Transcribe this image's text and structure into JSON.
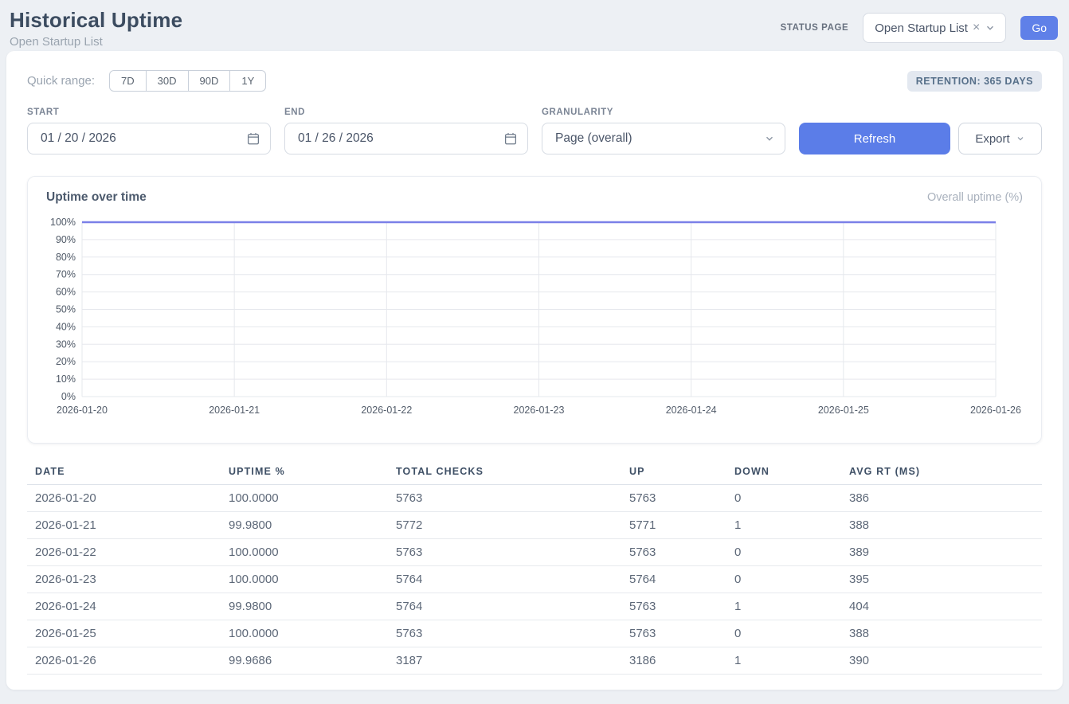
{
  "page": {
    "title": "Historical Uptime",
    "subtitle": "Open Startup List"
  },
  "status_page": {
    "label": "STATUS PAGE",
    "selected": "Open Startup List",
    "clear_icon": "×",
    "go_label": "Go"
  },
  "controls": {
    "quick_range_label": "Quick range:",
    "quick_ranges": [
      "7D",
      "30D",
      "90D",
      "1Y"
    ],
    "retention_badge": "RETENTION: 365 DAYS",
    "start": {
      "label": "START",
      "value": "01 / 20 / 2026"
    },
    "end": {
      "label": "END",
      "value": "01 / 26 / 2026"
    },
    "granularity": {
      "label": "GRANULARITY",
      "value": "Page (overall)"
    },
    "refresh_label": "Refresh",
    "export_label": "Export"
  },
  "chart": {
    "title": "Uptime over time",
    "legend": "Overall uptime (%)"
  },
  "chart_data": {
    "type": "line",
    "title": "Uptime over time",
    "x": [
      "2026-01-20",
      "2026-01-21",
      "2026-01-22",
      "2026-01-23",
      "2026-01-24",
      "2026-01-25",
      "2026-01-26"
    ],
    "series": [
      {
        "name": "Overall uptime (%)",
        "values": [
          100.0,
          99.98,
          100.0,
          100.0,
          99.98,
          100.0,
          99.9686
        ]
      }
    ],
    "ylim": [
      0,
      100
    ],
    "y_ticks": [
      "0%",
      "10%",
      "20%",
      "30%",
      "40%",
      "50%",
      "60%",
      "70%",
      "80%",
      "90%",
      "100%"
    ],
    "grid": true,
    "legend_position": "top-right",
    "line_color": "#7b80e8",
    "grid_color": "#e6e8ed",
    "axis_text_color": "#535d6b"
  },
  "table": {
    "columns": [
      "DATE",
      "UPTIME %",
      "TOTAL CHECKS",
      "UP",
      "DOWN",
      "AVG RT (MS)"
    ],
    "rows": [
      [
        "2026-01-20",
        "100.0000",
        "5763",
        "5763",
        "0",
        "386"
      ],
      [
        "2026-01-21",
        "99.9800",
        "5772",
        "5771",
        "1",
        "388"
      ],
      [
        "2026-01-22",
        "100.0000",
        "5763",
        "5763",
        "0",
        "389"
      ],
      [
        "2026-01-23",
        "100.0000",
        "5764",
        "5764",
        "0",
        "395"
      ],
      [
        "2026-01-24",
        "99.9800",
        "5764",
        "5763",
        "1",
        "404"
      ],
      [
        "2026-01-25",
        "100.0000",
        "5763",
        "5763",
        "0",
        "388"
      ],
      [
        "2026-01-26",
        "99.9686",
        "3187",
        "3186",
        "1",
        "390"
      ]
    ]
  },
  "colors": {
    "accent_blue": "#5b7de8",
    "line_purple": "#7b80e8",
    "page_bg": "#edf0f4"
  }
}
